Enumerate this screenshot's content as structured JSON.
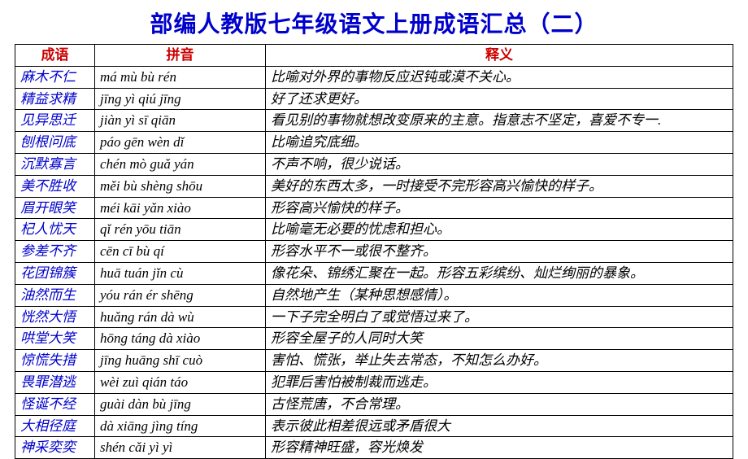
{
  "title": "部编人教版七年级语文上册成语汇总（二）",
  "headers": {
    "c1": "成语",
    "c2": "拼音",
    "c3": "释义"
  },
  "rows": [
    {
      "idiom": "麻木不仁",
      "pinyin": "má mù bù rén",
      "meaning": "比喻对外界的事物反应迟钝或漠不关心。"
    },
    {
      "idiom": "精益求精",
      "pinyin": "jīng yì qiú jīng",
      "meaning": "好了还求更好。"
    },
    {
      "idiom": "见异思迁",
      "pinyin": "jiàn yì sī qiān",
      "meaning": "看见别的事物就想改变原来的主意。指意志不坚定，喜爱不专一."
    },
    {
      "idiom": "刨根问底",
      "pinyin": "páo gēn wèn dǐ",
      "meaning": "比喻追究底细。"
    },
    {
      "idiom": "沉默寡言",
      "pinyin": "chén mò guǎ yán",
      "meaning": "不声不响，很少说话。"
    },
    {
      "idiom": "美不胜收",
      "pinyin": "měi bù shèng shōu",
      "meaning": "美好的东西太多，一时接受不完形容高兴愉快的样子。"
    },
    {
      "idiom": "眉开眼笑",
      "pinyin": "méi kāi yǎn xiào",
      "meaning": "形容高兴愉快的样子。"
    },
    {
      "idiom": "杞人忧天",
      "pinyin": "qǐ rén yōu tiān",
      "meaning": "比喻毫无必要的忧虑和担心。"
    },
    {
      "idiom": "参差不齐",
      "pinyin": "cēn cī bù qí",
      "meaning": "形容水平不一或很不整齐。"
    },
    {
      "idiom": "花团锦簇",
      "pinyin": "huā tuán jǐn cù",
      "meaning": "像花朵、锦绣汇聚在一起。形容五彩缤纷、灿烂绚丽的暴象。"
    },
    {
      "idiom": "油然而生",
      "pinyin": "yóu rán ér shēng",
      "meaning": "自然地产生（某种思想感情）。"
    },
    {
      "idiom": "恍然大悟",
      "pinyin": "huǎng rán dà wù",
      "meaning": "一下子完全明白了或觉悟过来了。"
    },
    {
      "idiom": "哄堂大笑",
      "pinyin": "hōng táng dà xiào",
      "meaning": "形容全屋子的人同时大笑"
    },
    {
      "idiom": "惊慌失措",
      "pinyin": "jīng huāng shī cuò",
      "meaning": "害怕、慌张，举止失去常态，不知怎么办好。"
    },
    {
      "idiom": "畏罪潜逃",
      "pinyin": "wèi zuì qián táo",
      "meaning": "犯罪后害怕被制裁而逃走。"
    },
    {
      "idiom": "怪诞不经",
      "pinyin": "guài dàn bù jīng",
      "meaning": "古怪荒唐，不合常理。"
    },
    {
      "idiom": "大相径庭",
      "pinyin": "dà xiāng jìng tíng",
      "meaning": "表示彼此相差很远或矛盾很大"
    },
    {
      "idiom": "神采奕奕",
      "pinyin": "shén cǎi yì yì",
      "meaning": "形容精神旺盛，容光焕发"
    }
  ]
}
